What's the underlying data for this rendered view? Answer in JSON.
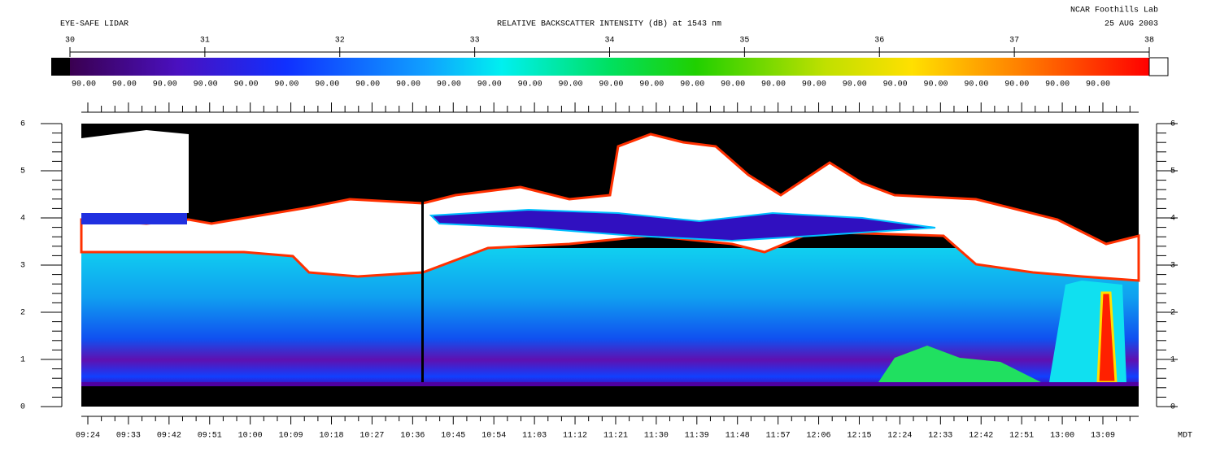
{
  "header": {
    "left": "EYE-SAFE LIDAR",
    "title": "RELATIVE BACKSCATTER INTENSITY (dB) at 1543 nm",
    "site": "NCAR Foothills Lab",
    "date": "25 AUG 2003"
  },
  "chart_data": {
    "type": "heatmap",
    "colorbar": {
      "lim": [
        30,
        38
      ],
      "ticks": [
        30,
        31,
        32,
        33,
        34,
        35,
        36,
        37,
        38
      ],
      "labels": [
        "90.00",
        "90.00",
        "90.00",
        "90.00",
        "90.00",
        "90.00",
        "90.00",
        "90.00",
        "90.00",
        "90.00",
        "90.00",
        "90.00",
        "90.00",
        "90.00",
        "90.00",
        "90.00",
        "90.00",
        "90.00",
        "90.00",
        "90.00",
        "90.00",
        "90.00",
        "90.00",
        "90.00",
        "90.00",
        "90.00"
      ]
    },
    "ylim": [
      0,
      6
    ],
    "yticks": [
      0,
      1,
      2,
      3,
      4,
      5,
      6
    ],
    "x_labels": [
      "09:24",
      "09:33",
      "09:42",
      "09:51",
      "10:00",
      "10:09",
      "10:18",
      "10:27",
      "10:36",
      "10:45",
      "10:54",
      "11:03",
      "11:12",
      "11:21",
      "11:30",
      "11:39",
      "11:48",
      "11:57",
      "12:06",
      "12:15",
      "12:24",
      "12:33",
      "12:42",
      "12:51",
      "13:00",
      "13:09"
    ],
    "x_unit": "MDT"
  }
}
